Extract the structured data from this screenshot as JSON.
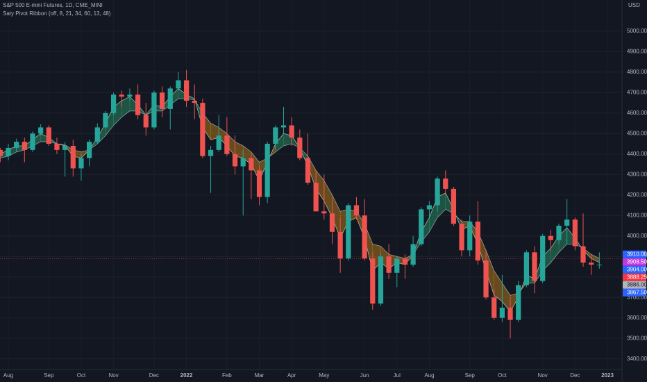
{
  "chart_data": {
    "type": "candlestick",
    "title": "S&P 500 E-mini Futures, 1D, CME_MINI",
    "subtitle": "Saty Pivot Ribbon (off, 8, 21, 34, 60, 13, 48)",
    "currency": "USD",
    "categories": [
      null,
      "Aug",
      null,
      null,
      null,
      null,
      "Sep",
      null,
      null,
      null,
      "Oct",
      null,
      null,
      null,
      "Nov",
      null,
      null,
      null,
      null,
      "Dec",
      null,
      null,
      null,
      "2022",
      null,
      null,
      null,
      null,
      "Feb",
      null,
      null,
      null,
      "Mar",
      null,
      null,
      null,
      "Apr",
      null,
      null,
      null,
      "May",
      null,
      null,
      null,
      null,
      "Jun",
      null,
      null,
      null,
      "Jul",
      null,
      null,
      null,
      "Aug",
      null,
      null,
      null,
      null,
      "Sep",
      null,
      null,
      null,
      "Oct",
      null,
      null,
      null,
      null,
      "Nov",
      null,
      null,
      null,
      "Dec",
      null,
      null,
      null,
      "2023"
    ],
    "open": [
      4420,
      4390,
      4430,
      4460,
      4420,
      4500,
      4530,
      4450,
      4420,
      4440,
      4330,
      4380,
      4460,
      4530,
      4600,
      4690,
      4680,
      4690,
      4590,
      4530,
      4700,
      4620,
      4720,
      4760,
      4660,
      4650,
      4390,
      4420,
      4490,
      4400,
      4340,
      4380,
      4320,
      4190,
      4450,
      4530,
      4540,
      4480,
      4380,
      4260,
      4120,
      4110,
      4020,
      3890,
      4150,
      4100,
      3890,
      3670,
      3900,
      3820,
      3890,
      3860,
      3960,
      4130,
      4150,
      4280,
      4230,
      4060,
      3930,
      4070,
      3880,
      3700,
      3600,
      3650,
      3590,
      3760,
      3920,
      3780,
      4000,
      3980,
      4050,
      4080,
      3950,
      3870,
      3860,
      null
    ],
    "high": [
      4430,
      4450,
      4475,
      4480,
      4510,
      4545,
      4540,
      4480,
      4460,
      4470,
      4400,
      4470,
      4550,
      4610,
      4700,
      4710,
      4720,
      4740,
      4650,
      4710,
      4730,
      4730,
      4800,
      4810,
      4740,
      4670,
      4440,
      4590,
      4580,
      4490,
      4420,
      4400,
      4340,
      4460,
      4540,
      4630,
      4580,
      4520,
      4500,
      4320,
      4300,
      4180,
      4090,
      4160,
      4190,
      4180,
      3920,
      3920,
      3960,
      3900,
      3910,
      4000,
      4140,
      4170,
      4290,
      4320,
      4240,
      4080,
      4100,
      4170,
      3920,
      3740,
      3810,
      3700,
      3780,
      3930,
      3950,
      4010,
      4030,
      4060,
      4180,
      4090,
      4110,
      3900,
      3920,
      null
    ],
    "low": [
      4360,
      4370,
      4410,
      4360,
      4410,
      4490,
      4440,
      4400,
      4290,
      4290,
      4270,
      4340,
      4450,
      4520,
      4590,
      4630,
      4660,
      4570,
      4490,
      4520,
      4580,
      4520,
      4710,
      4630,
      4570,
      4380,
      4210,
      4410,
      4390,
      4300,
      4100,
      4180,
      4150,
      4160,
      4420,
      4500,
      4440,
      4370,
      4250,
      4120,
      4080,
      3960,
      3820,
      3880,
      4080,
      3880,
      3640,
      3660,
      3790,
      3750,
      3790,
      3850,
      3950,
      4090,
      4120,
      4200,
      4050,
      3900,
      3900,
      3860,
      3690,
      3590,
      3580,
      3500,
      3580,
      3750,
      3720,
      3770,
      3930,
      3960,
      3960,
      3930,
      3850,
      3810,
      3840,
      null
    ],
    "close": [
      4390,
      4430,
      4460,
      4420,
      4500,
      4530,
      4450,
      4420,
      4440,
      4330,
      4380,
      4460,
      4530,
      4600,
      4690,
      4680,
      4690,
      4590,
      4530,
      4700,
      4620,
      4720,
      4760,
      4660,
      4650,
      4390,
      4420,
      4490,
      4400,
      4340,
      4380,
      4320,
      4190,
      4450,
      4530,
      4540,
      4480,
      4380,
      4260,
      4120,
      4110,
      4020,
      3890,
      4150,
      4100,
      3890,
      3670,
      3900,
      3820,
      3890,
      3860,
      3960,
      4130,
      4150,
      4280,
      4230,
      4060,
      3930,
      4070,
      3880,
      3700,
      3600,
      3650,
      3590,
      3760,
      3920,
      3780,
      4000,
      3980,
      4050,
      4080,
      3950,
      3870,
      3860,
      3860,
      null
    ],
    "ribbon_fast": [
      4400,
      4420,
      4440,
      4440,
      4470,
      4500,
      4480,
      4450,
      4440,
      4390,
      4380,
      4420,
      4480,
      4550,
      4630,
      4660,
      4680,
      4640,
      4590,
      4640,
      4630,
      4680,
      4720,
      4690,
      4670,
      4530,
      4470,
      4480,
      4440,
      4390,
      4380,
      4350,
      4270,
      4360,
      4450,
      4500,
      4490,
      4430,
      4340,
      4230,
      4170,
      4090,
      3990,
      4070,
      4090,
      3990,
      3830,
      3870,
      3840,
      3870,
      3860,
      3910,
      4020,
      4090,
      4190,
      4210,
      4130,
      4030,
      4050,
      3960,
      3830,
      3710,
      3680,
      3630,
      3700,
      3810,
      3790,
      3900,
      3940,
      4000,
      4040,
      3990,
      3930,
      3890,
      3870,
      null
    ],
    "ribbon_slow": [
      4380,
      4390,
      4410,
      4420,
      4440,
      4460,
      4460,
      4450,
      4445,
      4420,
      4410,
      4420,
      4450,
      4490,
      4540,
      4580,
      4610,
      4610,
      4590,
      4610,
      4610,
      4640,
      4670,
      4670,
      4665,
      4600,
      4550,
      4530,
      4500,
      4460,
      4440,
      4410,
      4360,
      4380,
      4410,
      4440,
      4450,
      4430,
      4390,
      4320,
      4270,
      4200,
      4120,
      4130,
      4120,
      4060,
      3960,
      3950,
      3910,
      3900,
      3890,
      3910,
      3970,
      4020,
      4090,
      4130,
      4110,
      4070,
      4070,
      4020,
      3930,
      3830,
      3770,
      3710,
      3720,
      3770,
      3770,
      3830,
      3870,
      3920,
      3960,
      3960,
      3940,
      3910,
      3890,
      null
    ],
    "up_color": "#26a69a",
    "down_color": "#ef5350",
    "bull_color": "#2f9e6e",
    "bear_color": "#d08a1c",
    "ylim": [
      3348,
      5152
    ],
    "yticks": [
      {
        "value": 3400,
        "label": "3400.00"
      },
      {
        "value": 3500,
        "label": "3500.00"
      },
      {
        "value": 3600,
        "label": "3600.00"
      },
      {
        "value": 3700,
        "label": "3700.00"
      },
      {
        "value": 3800,
        "label": "3800.00"
      },
      {
        "value": 3900,
        "label": "3900.00"
      },
      {
        "value": 4000,
        "label": "4000.00"
      },
      {
        "value": 4100,
        "label": "4100.00"
      },
      {
        "value": 4200,
        "label": "4200.00"
      },
      {
        "value": 4300,
        "label": "4300.00"
      },
      {
        "value": 4400,
        "label": "4400.00"
      },
      {
        "value": 4500,
        "label": "4500.00"
      },
      {
        "value": 4600,
        "label": "4600.00"
      },
      {
        "value": 4700,
        "label": "4700.00"
      },
      {
        "value": 4800,
        "label": "4800.00"
      },
      {
        "value": 4900,
        "label": "4900.00"
      },
      {
        "value": 5000,
        "label": "5000.00"
      }
    ],
    "grid": true,
    "price_labels": [
      {
        "value": 3910,
        "label": "3910.00",
        "color": "#2962ff"
      },
      {
        "value": 3908.5,
        "label": "3908.50",
        "color": "#c239e0"
      },
      {
        "value": 3904,
        "label": "3904.00",
        "color": "#2962ff"
      },
      {
        "value": 3888.25,
        "label": "3888.25",
        "color": "#f23645"
      },
      {
        "value": 3886,
        "label": "3886.00",
        "color": "#b2b5be"
      },
      {
        "value": 3867.5,
        "label": "3867.50",
        "color": "#2962ff"
      }
    ]
  }
}
